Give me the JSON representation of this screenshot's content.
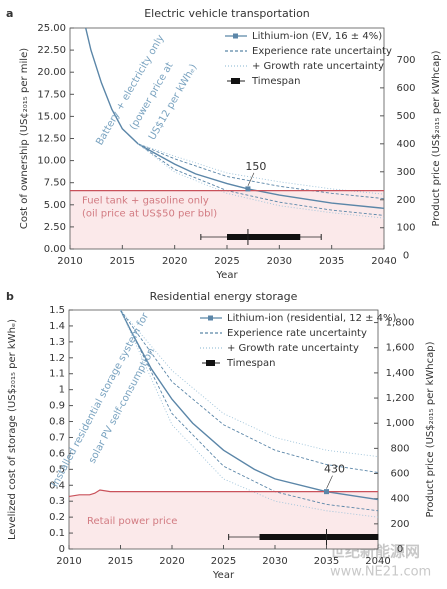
{
  "chart_data": [
    {
      "type": "line",
      "panel": "a",
      "title": "Electric vehicle transportation",
      "xlabel": "Year",
      "ylabel": "Cost of ownership (US¢₂₀₁₅ per mile)",
      "y2label": "Product price (US$₂₀₁₅ per kWhcap)",
      "xlim": [
        2010,
        2040
      ],
      "xticks": [
        2010,
        2015,
        2020,
        2025,
        2030,
        2035,
        2040
      ],
      "ylim": [
        0,
        25
      ],
      "yticks": [
        {
          "value": 0,
          "label": "0.00"
        },
        {
          "value": 2.5,
          "label": "2.50"
        },
        {
          "value": 5,
          "label": "5.00"
        },
        {
          "value": 7.5,
          "label": "7.50"
        },
        {
          "value": 10,
          "label": "10.00"
        },
        {
          "value": 12.5,
          "label": "12.50"
        },
        {
          "value": 15,
          "label": "15.00"
        },
        {
          "value": 17.5,
          "label": "17.50"
        },
        {
          "value": 20,
          "label": "20.00"
        },
        {
          "value": 22.5,
          "label": "22.50"
        },
        {
          "value": 25,
          "label": "25.00"
        }
      ],
      "y2lim": [
        24,
        814
      ],
      "y2ticks": [
        0,
        100,
        200,
        300,
        400,
        500,
        600,
        700
      ],
      "series": [
        {
          "name": "Lithium-ion (EV, 16 ± 4%)",
          "color": "#5b86a8",
          "style": "solid",
          "x": [
            2011.5,
            2012,
            2013,
            2014,
            2015,
            2016.5,
            2018,
            2020,
            2022,
            2025,
            2027,
            2030,
            2035,
            2040
          ],
          "values": [
            25,
            22.5,
            18.8,
            15.8,
            13.6,
            11.9,
            10.9,
            9.6,
            8.5,
            7.4,
            6.8,
            6.1,
            5.2,
            4.6
          ]
        },
        {
          "name": "Experience rate uncertainty",
          "color": "#5b86a8",
          "style": "dashed",
          "x": [
            2016.5,
            2020,
            2025,
            2030,
            2035,
            2040
          ],
          "lower": [
            11.9,
            9.0,
            6.6,
            5.3,
            4.4,
            3.8
          ],
          "upper": [
            11.9,
            10.2,
            8.2,
            7.1,
            6.3,
            5.7
          ]
        },
        {
          "name": "+ Growth rate uncertainty",
          "color": "#9ec3da",
          "style": "dotted",
          "x": [
            2016.5,
            2020,
            2025,
            2030,
            2035,
            2040
          ],
          "lower": [
            11.9,
            8.7,
            6.3,
            4.9,
            4.1,
            3.5
          ],
          "upper": [
            11.9,
            10.5,
            8.6,
            7.6,
            6.8,
            6.2
          ]
        },
        {
          "name": "Fuel tank + gasoline only",
          "color": "#c9515a",
          "style": "ref",
          "x": [
            2010,
            2040
          ],
          "values": [
            6.6,
            6.6
          ]
        }
      ],
      "point": {
        "x": 2027,
        "y": 6.8,
        "label": "150"
      },
      "timespan": {
        "name": "Timespan",
        "whisker": [
          2022.5,
          2034
        ],
        "box": [
          2025,
          2032
        ],
        "median": 2027
      },
      "annotations": {
        "curve": [
          "Battery + electricity only",
          "(power price at",
          "US$12 per kWhₑ)"
        ],
        "ref": [
          "Fuel tank + gasoline only",
          "(oil price at US$50 per bbl)"
        ]
      }
    },
    {
      "type": "line",
      "panel": "b",
      "title": "Residential energy storage",
      "xlabel": "Year",
      "ylabel": "Levelized cost of storage (US$₂₀₁₅ per kWhₑ)",
      "y2label": "Product price (US$₂₀₁₅ per kWhcap)",
      "xlim": [
        2010,
        2040
      ],
      "xticks": [
        2010,
        2015,
        2020,
        2025,
        2030,
        2035,
        2040
      ],
      "ylim": [
        0,
        1.5
      ],
      "yticks": [
        0,
        0.1,
        0.2,
        0.3,
        0.4,
        0.5,
        0.6,
        0.7,
        0.8,
        0.9,
        1,
        1.1,
        1.2,
        1.3,
        1.4,
        1.5
      ],
      "y2lim": [
        0,
        1900
      ],
      "y2ticks": [
        0,
        200,
        400,
        600,
        800,
        {
          "value": 1000,
          "label": "1,000"
        },
        {
          "value": 1200,
          "label": "1,200"
        },
        {
          "value": 1400,
          "label": "1,400"
        },
        {
          "value": 1600,
          "label": "1,600"
        },
        {
          "value": 1800,
          "label": "1,800"
        }
      ],
      "series": [
        {
          "name": "Lithium-ion (residential, 12 ± 4%)",
          "color": "#5b86a8",
          "style": "solid",
          "x": [
            2015,
            2016,
            2018,
            2020,
            2022,
            2025,
            2028,
            2030,
            2035,
            2040
          ],
          "values": [
            1.5,
            1.37,
            1.13,
            0.94,
            0.79,
            0.62,
            0.5,
            0.44,
            0.36,
            0.31
          ]
        },
        {
          "name": "Experience rate uncertainty",
          "color": "#5b86a8",
          "style": "dashed",
          "x": [
            2015,
            2020,
            2025,
            2030,
            2035,
            2040
          ],
          "lower": [
            1.5,
            0.85,
            0.52,
            0.36,
            0.28,
            0.24
          ],
          "upper": [
            1.5,
            1.05,
            0.78,
            0.62,
            0.53,
            0.48
          ]
        },
        {
          "name": "+ Growth rate uncertainty",
          "color": "#9ec3da",
          "style": "dotted",
          "x": [
            2015,
            2020,
            2025,
            2030,
            2035,
            2040
          ],
          "lower": [
            1.5,
            0.78,
            0.44,
            0.3,
            0.24,
            0.2
          ],
          "upper": [
            1.5,
            1.12,
            0.85,
            0.7,
            0.62,
            0.58
          ]
        },
        {
          "name": "Retail power price",
          "color": "#c9515a",
          "style": "ref",
          "x": [
            2010,
            2011,
            2012,
            2012.5,
            2013,
            2014,
            2020,
            2040
          ],
          "values": [
            0.33,
            0.34,
            0.34,
            0.35,
            0.37,
            0.36,
            0.36,
            0.36
          ]
        }
      ],
      "point": {
        "x": 2035,
        "y": 0.36,
        "label": "430"
      },
      "timespan": {
        "name": "Timespan",
        "whisker": [
          2025.5,
          2040
        ],
        "box": [
          2028.5,
          2040
        ],
        "median": 2035
      },
      "annotations": {
        "curve": [
          "Installed residential storage system for",
          "solar PV self-consumption"
        ],
        "ref": [
          "Retail power price"
        ]
      }
    }
  ],
  "watermark": [
    "世纪新能源网",
    "www.NE21.com"
  ]
}
